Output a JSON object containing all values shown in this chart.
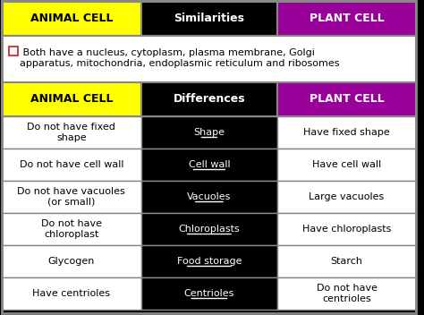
{
  "figsize": [
    4.74,
    3.52
  ],
  "dpi": 100,
  "bg_color": "#000000",
  "yellow": "#FFFF00",
  "purple": "#990099",
  "white": "#FFFFFF",
  "black": "#000000",
  "light_gray": "#DDDDDD",
  "header1_text": "ANIMAL CELL",
  "header2_text": "Similarities",
  "header3_text": "PLANT CELL",
  "similarity_text": "□  Both have a nucleus, cytoplasm, plasma membrane, Golgi\napparatus, mitochondria, endoplasmic reticulum and ribosomes",
  "diff_header1": "ANIMAL CELL",
  "diff_header2": "Differences",
  "diff_header3": "PLANT CELL",
  "rows": [
    [
      "Do not have fixed\nshape",
      "Shape",
      "Have fixed shape"
    ],
    [
      "Do not have cell wall",
      "Cell wall",
      "Have cell wall"
    ],
    [
      "Do not have vacuoles\n(or small)",
      "Vacuoles",
      "Large vacuoles"
    ],
    [
      "Do not have\nchloroplast",
      "Chloroplasts",
      "Have chloroplasts"
    ],
    [
      "Glycogen",
      "Food storage",
      "Starch"
    ],
    [
      "Have centrioles",
      "Centrioles",
      "Do not have\ncentrioles"
    ]
  ],
  "underlined_middle": [
    "Shape",
    "Cell wall",
    "Vacuoles",
    "Chloroplasts",
    "Food storage",
    "Centrioles"
  ]
}
